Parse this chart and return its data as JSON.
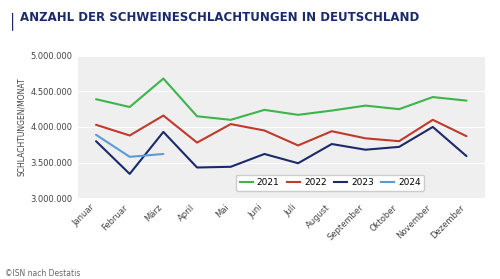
{
  "title": "ANZAHL DER SCHWEINESCHLACHTUNGEN IN DEUTSCHLAND",
  "ylabel": "SCHLACHTUNGEN/MONAT",
  "caption": "©ISN nach Destatis",
  "months": [
    "Januar",
    "Februar",
    "März",
    "April",
    "Mai",
    "Juni",
    "Juli",
    "August",
    "September",
    "Oktober",
    "November",
    "Dezember"
  ],
  "series": {
    "2021": [
      4390000,
      4280000,
      4680000,
      4150000,
      4100000,
      4240000,
      4170000,
      4230000,
      4300000,
      4250000,
      4420000,
      4370000
    ],
    "2022": [
      4030000,
      3880000,
      4160000,
      3780000,
      4040000,
      3950000,
      3740000,
      3940000,
      3840000,
      3800000,
      4100000,
      3870000
    ],
    "2023": [
      3800000,
      3340000,
      3930000,
      3430000,
      3440000,
      3620000,
      3490000,
      3760000,
      3680000,
      3720000,
      4000000,
      3590000
    ],
    "2024": [
      3890000,
      3580000,
      3620000,
      null,
      null,
      null,
      null,
      null,
      null,
      null,
      null,
      null
    ]
  },
  "colors": {
    "2021": "#3CB54A",
    "2022": "#C0392B",
    "2023": "#1B2A6B",
    "2024": "#5B9BD5"
  },
  "ylim": [
    3000000,
    5000000
  ],
  "yticks": [
    3000000,
    3500000,
    4000000,
    4500000,
    5000000
  ],
  "title_bar_color": "#1B2A6B",
  "title_text_color": "#1B2A6B",
  "background_color": "#FFFFFF",
  "plot_bg_color": "#EFEFEF",
  "grid_color": "#FFFFFF",
  "title_fontsize": 8.5,
  "tick_fontsize": 6.0,
  "ylabel_fontsize": 5.5,
  "caption_fontsize": 5.5,
  "legend_fontsize": 6.5,
  "line_width": 1.5
}
